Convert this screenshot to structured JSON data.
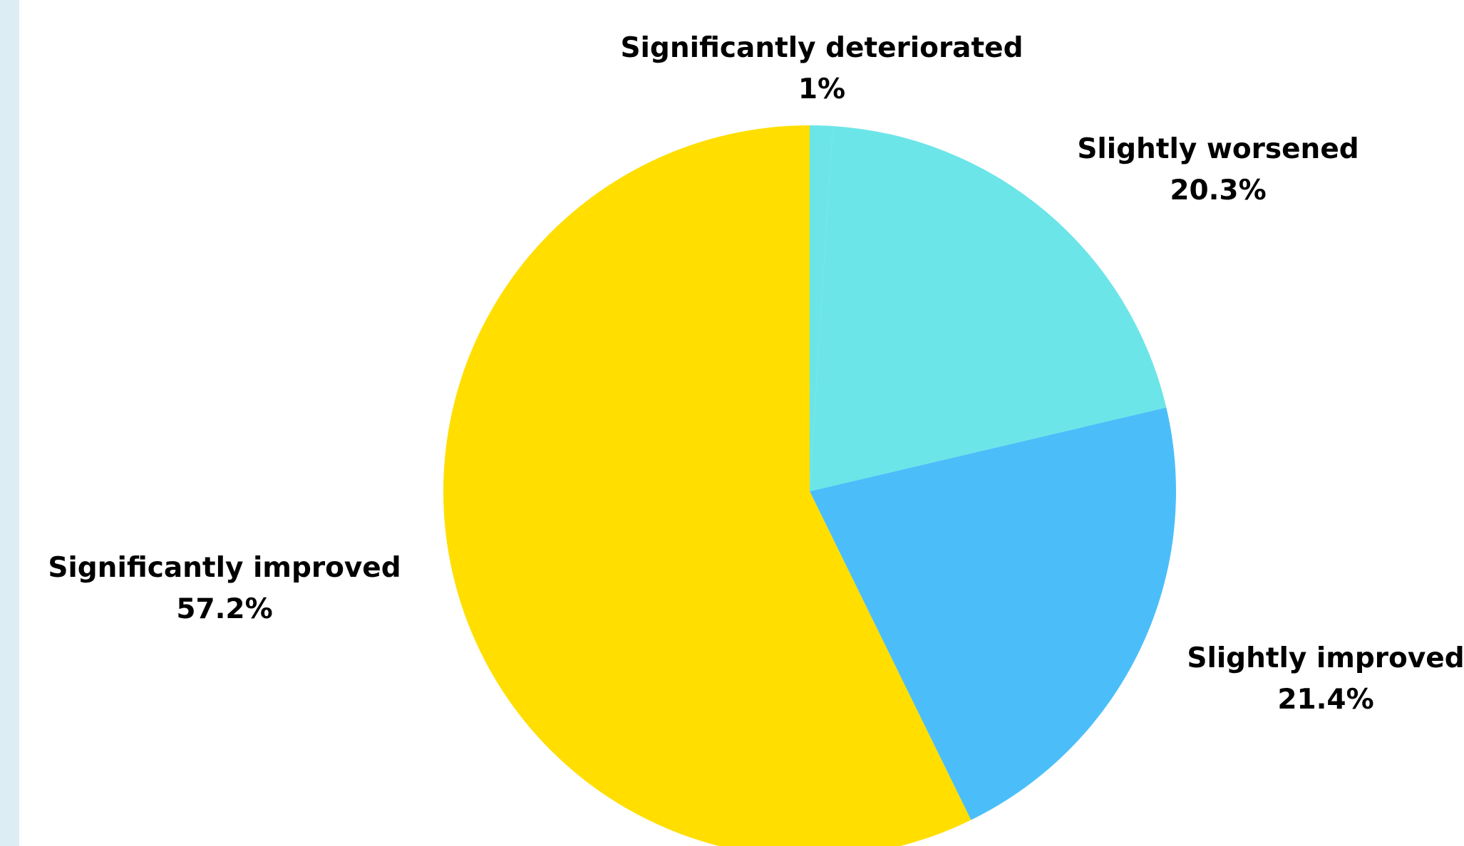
{
  "colors": {
    "side_band": "#dcedf3",
    "background": "#ffffff"
  },
  "chart_data": {
    "type": "pie",
    "title": "",
    "start": "top",
    "direction": "clockwise",
    "legend": "none",
    "slices": [
      {
        "label": "Significantly deteriorated",
        "value": 1.0,
        "value_label": "1%",
        "color": "#6ce5e8"
      },
      {
        "label": "Slightly worsened",
        "value": 20.3,
        "value_label": "20.3%",
        "color": "#6ce5e8"
      },
      {
        "label": "Slightly improved",
        "value": 21.4,
        "value_label": "21.4%",
        "color": "#4bbef9"
      },
      {
        "label": "Significantly improved",
        "value": 57.2,
        "value_label": "57.2%",
        "color": "#ffde00"
      }
    ]
  }
}
